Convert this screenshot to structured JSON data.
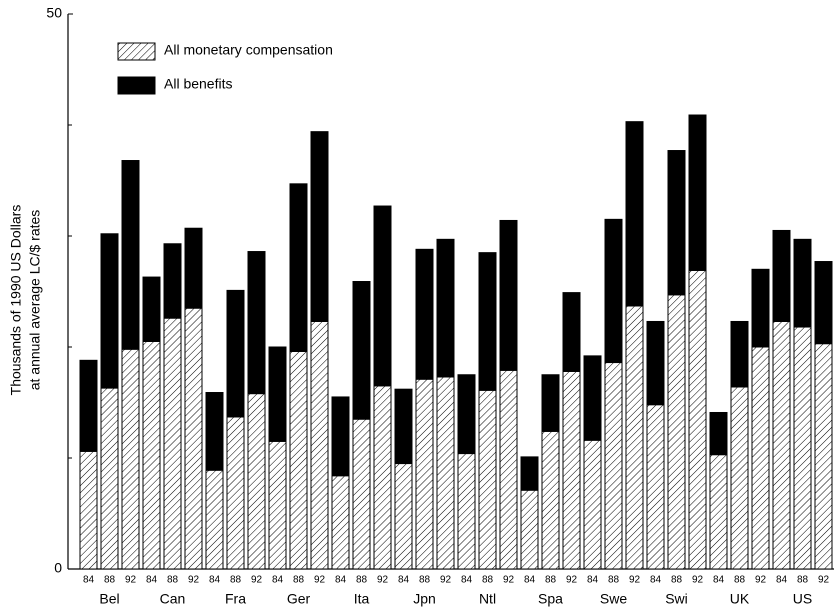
{
  "chart_data": {
    "type": "stacked_bar",
    "ylabel": [
      "Thousands of 1990 US Dollars",
      "at annual average LC/$ rates"
    ],
    "categories": [
      "84",
      "88",
      "92",
      "84",
      "88",
      "92",
      "84",
      "88",
      "92",
      "84",
      "88",
      "92",
      "84",
      "88",
      "92",
      "84",
      "88",
      "92",
      "84",
      "88",
      "92",
      "84",
      "88",
      "92",
      "84",
      "88",
      "92",
      "84",
      "88",
      "92",
      "84",
      "88",
      "92",
      "84",
      "88",
      "92"
    ],
    "groups": [
      "Bel",
      "Can",
      "Fra",
      "Ger",
      "Ita",
      "Jpn",
      "Ntl",
      "Spa",
      "Swe",
      "Swi",
      "UK",
      "US"
    ],
    "series": [
      {
        "name": "All monetary compensation",
        "color": "#000000",
        "pattern": "hatch",
        "values": [
          10.6,
          16.3,
          19.8,
          20.5,
          22.6,
          23.5,
          8.9,
          13.7,
          15.8,
          11.5,
          19.6,
          22.3,
          8.4,
          13.5,
          16.5,
          9.5,
          17.1,
          17.3,
          10.4,
          16.1,
          17.9,
          7.1,
          12.4,
          17.8,
          11.6,
          18.6,
          23.7,
          14.8,
          24.7,
          26.9,
          10.3,
          16.4,
          20.0,
          22.3,
          21.8,
          20.3
        ]
      },
      {
        "name": "All benefits",
        "color": "#000000",
        "pattern": "solid",
        "values": [
          8.2,
          13.9,
          17.0,
          5.8,
          6.7,
          7.2,
          7.0,
          11.4,
          12.8,
          8.5,
          15.1,
          17.1,
          7.1,
          12.4,
          16.2,
          6.7,
          11.7,
          12.4,
          7.1,
          12.4,
          13.5,
          3.0,
          5.1,
          7.1,
          7.6,
          12.9,
          16.6,
          7.5,
          13.0,
          14.0,
          3.8,
          5.9,
          7.0,
          8.2,
          7.9,
          7.4
        ]
      }
    ],
    "ylim": [
      0,
      50
    ],
    "yticks": [
      0,
      50
    ],
    "minor_yticks": [
      10,
      20,
      30,
      40
    ]
  }
}
